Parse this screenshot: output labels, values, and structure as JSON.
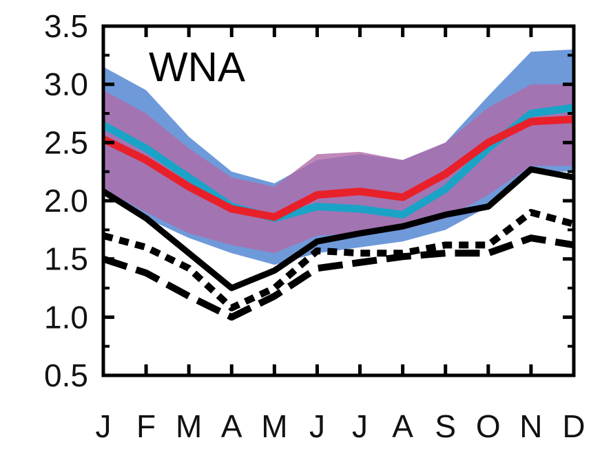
{
  "chart_data": {
    "type": "line",
    "panel_label": "WNA",
    "categories": [
      "J",
      "F",
      "M",
      "A",
      "M",
      "J",
      "J",
      "A",
      "S",
      "O",
      "N",
      "D"
    ],
    "ylim": [
      0.5,
      3.5
    ],
    "yticks": [
      "0.5",
      "1.0",
      "1.5",
      "2.0",
      "2.5",
      "3.0",
      "3.5"
    ],
    "ytick_values": [
      0.5,
      1.0,
      1.5,
      2.0,
      2.5,
      3.0,
      3.5
    ],
    "grid": false,
    "bands": [
      {
        "color": "#5f8fd6",
        "lower": [
          2.05,
          1.85,
          1.68,
          1.55,
          1.45,
          1.55,
          1.6,
          1.65,
          1.75,
          1.95,
          2.25,
          2.25
        ],
        "upper": [
          3.15,
          2.95,
          2.55,
          2.25,
          2.15,
          2.35,
          2.4,
          2.35,
          2.5,
          2.9,
          3.28,
          3.3
        ]
      },
      {
        "color": "#b06aa8",
        "lower": [
          2.1,
          1.9,
          1.72,
          1.62,
          1.55,
          1.7,
          1.72,
          1.75,
          1.85,
          2.05,
          2.3,
          2.3
        ],
        "upper": [
          2.95,
          2.75,
          2.45,
          2.2,
          2.12,
          2.4,
          2.42,
          2.35,
          2.5,
          2.8,
          3.0,
          3.0
        ]
      }
    ],
    "series": [
      {
        "color": "#1aa3c7",
        "style": "solid",
        "values": [
          2.65,
          2.45,
          2.2,
          1.95,
          1.85,
          1.95,
          1.93,
          1.88,
          2.1,
          2.45,
          2.75,
          2.8
        ]
      },
      {
        "color": "#e8202a",
        "style": "solid",
        "values": [
          2.53,
          2.35,
          2.12,
          1.93,
          1.86,
          2.05,
          2.08,
          2.03,
          2.23,
          2.5,
          2.68,
          2.7
        ]
      },
      {
        "color": "#000000",
        "style": "solid",
        "values": [
          2.08,
          1.85,
          1.55,
          1.25,
          1.4,
          1.65,
          1.72,
          1.78,
          1.88,
          1.95,
          2.27,
          2.2
        ]
      },
      {
        "color": "#000000",
        "style": "dotted",
        "values": [
          1.7,
          1.6,
          1.42,
          1.08,
          1.25,
          1.57,
          1.55,
          1.55,
          1.62,
          1.62,
          1.9,
          1.8
        ]
      },
      {
        "color": "#000000",
        "style": "dashed",
        "values": [
          1.5,
          1.38,
          1.18,
          1.0,
          1.18,
          1.42,
          1.47,
          1.52,
          1.55,
          1.55,
          1.68,
          1.62
        ]
      }
    ]
  }
}
